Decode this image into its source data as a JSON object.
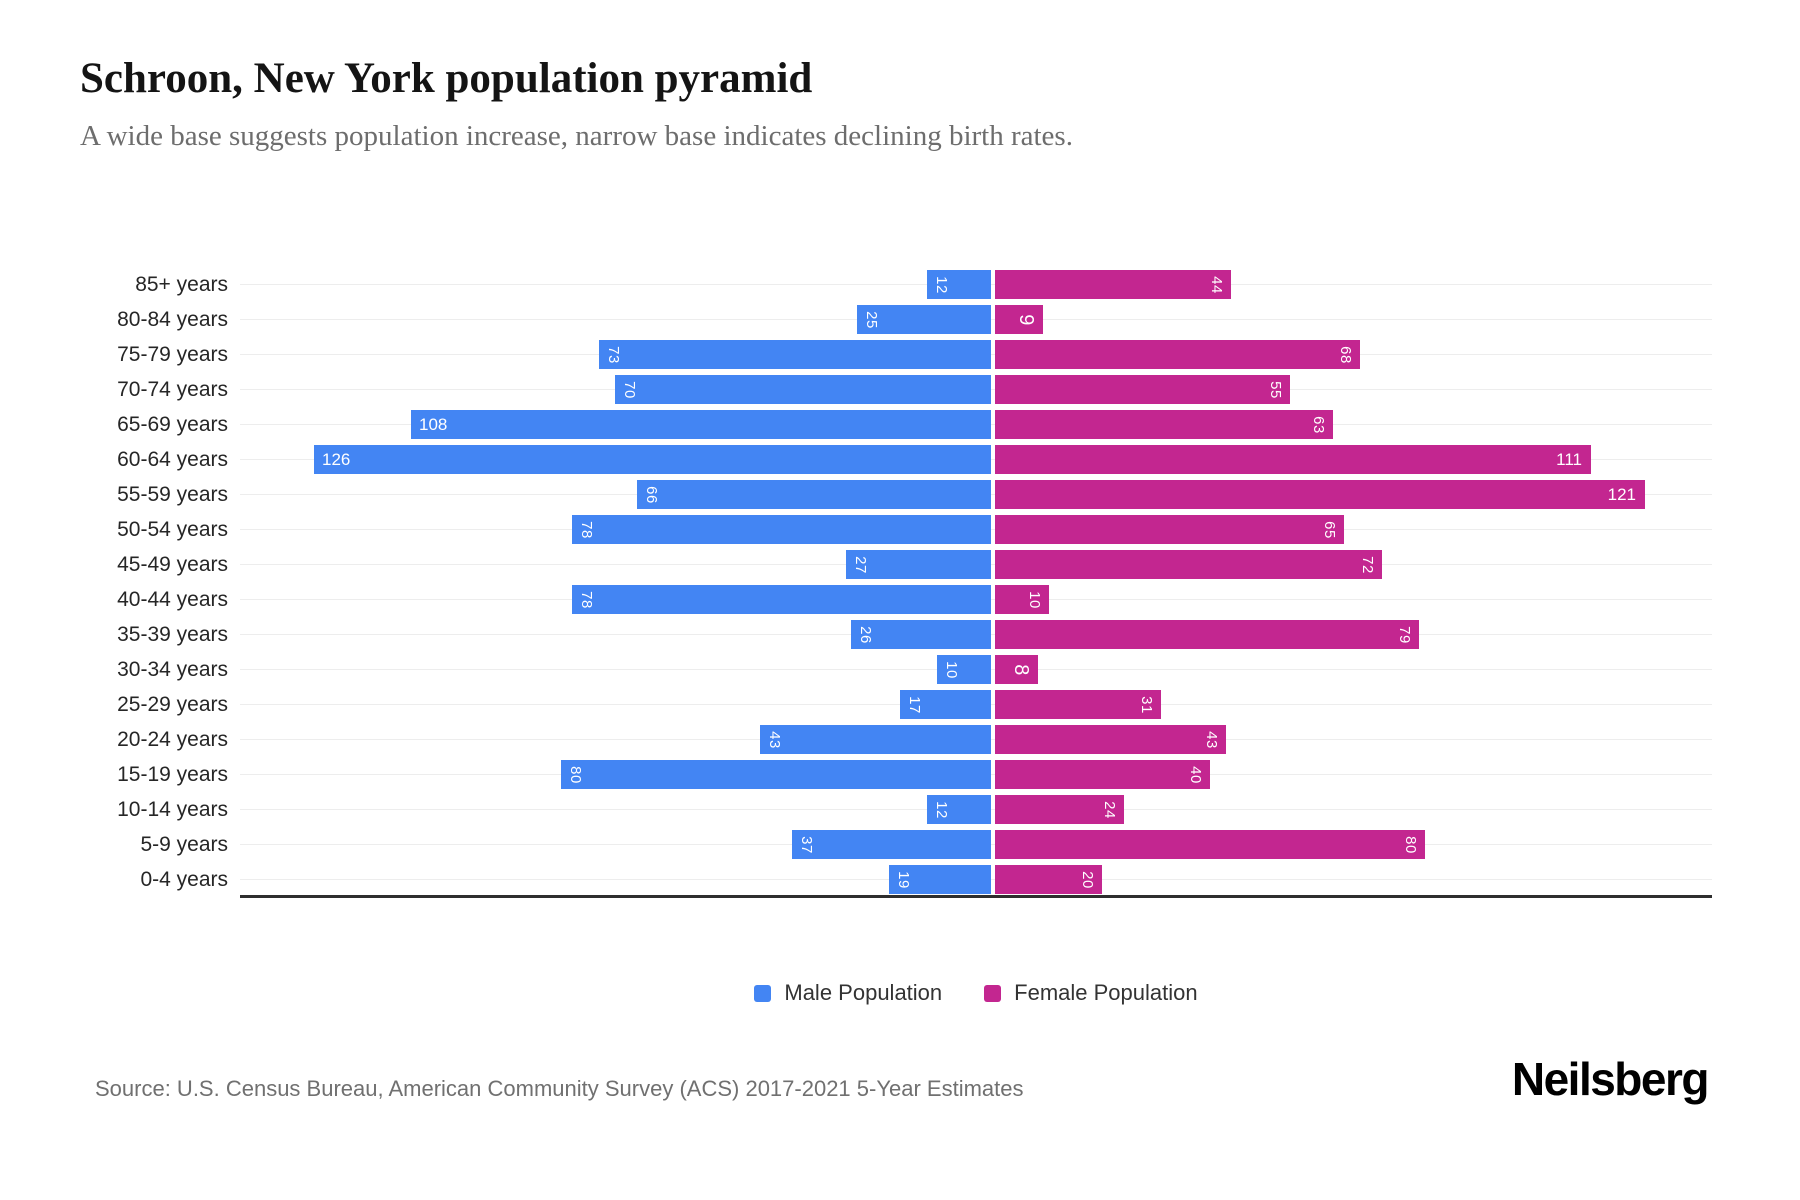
{
  "header": {
    "title": "Schroon, New York population pyramid",
    "subtitle": "A wide base suggests population increase, narrow base indicates declining birth rates."
  },
  "chart_data": {
    "type": "bar",
    "subtype": "population-pyramid",
    "orientation": "horizontal",
    "title": "Schroon, New York population pyramid",
    "categories": [
      "85+ years",
      "80-84 years",
      "75-79 years",
      "70-74 years",
      "65-69 years",
      "60-64 years",
      "55-59 years",
      "50-54 years",
      "45-49 years",
      "40-44 years",
      "35-39 years",
      "30-34 years",
      "25-29 years",
      "20-24 years",
      "15-19 years",
      "10-14 years",
      "5-9 years",
      "0-4 years"
    ],
    "series": [
      {
        "name": "Male Population",
        "side": "left",
        "color": "#4385F3",
        "values": [
          12,
          25,
          73,
          70,
          108,
          126,
          66,
          78,
          27,
          78,
          26,
          10,
          17,
          43,
          80,
          12,
          37,
          19
        ]
      },
      {
        "name": "Female Population",
        "side": "right",
        "color": "#C32690",
        "values": [
          44,
          9,
          68,
          55,
          63,
          111,
          121,
          65,
          72,
          10,
          79,
          8,
          31,
          43,
          40,
          24,
          80,
          20
        ]
      }
    ],
    "value_axis": {
      "max_per_side": 137,
      "tick_labels_visible": false,
      "grid": true
    },
    "grid_color": "#ededed",
    "bar_label_color": "#ffffff",
    "legend_position": "bottom-center"
  },
  "footer": {
    "source": "Source: U.S. Census Bureau, American Community Survey (ACS) 2017-2021 5-Year Estimates",
    "brand": "Neilsberg"
  }
}
